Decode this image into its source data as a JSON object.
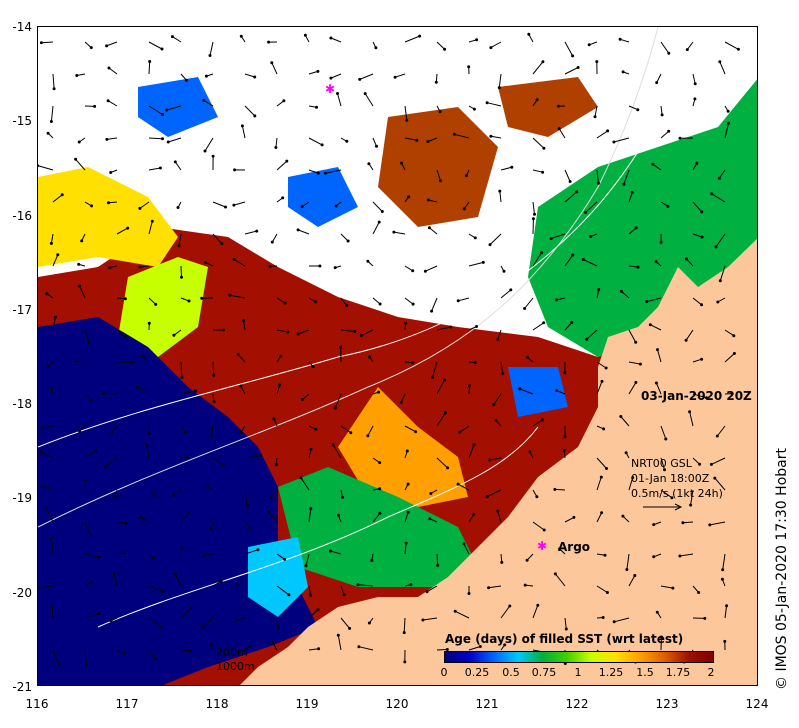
{
  "map_title": "03-Jan-2020 20Z",
  "current_info": {
    "line1": "NRT00 GSL",
    "line2": "01-Jan 18:00Z",
    "line3": "0.5m/s (1kt 24h)"
  },
  "argo_label": "Argo",
  "depth_legend": {
    "contour1": "200m",
    "contour2": "1000m"
  },
  "colorbar": {
    "title": "Age (days) of filled SST (wrt latest)",
    "ticks": [
      "0",
      "0.25",
      "0.5",
      "0.75",
      "1",
      "1.25",
      "1.5",
      "1.75",
      "2"
    ],
    "colors": [
      "#00007f",
      "#0000c8",
      "#0064ff",
      "#00c8ff",
      "#00b040",
      "#40d000",
      "#c8ff00",
      "#ffe000",
      "#ffa000",
      "#e06000",
      "#a01000",
      "#800000"
    ]
  },
  "axes": {
    "x_ticks": [
      "116",
      "117",
      "118",
      "119",
      "120",
      "121",
      "122",
      "123",
      "124"
    ],
    "y_ticks": [
      "-14",
      "-15",
      "-16",
      "-17",
      "-18",
      "-19",
      "-20",
      "-21"
    ]
  },
  "credit": "© IMOS 05-Jan-2020 17:30 Hobart",
  "colors": {
    "land": "#fcc79b",
    "deep_water": "#00007f",
    "old_sst": "#a30f00"
  }
}
